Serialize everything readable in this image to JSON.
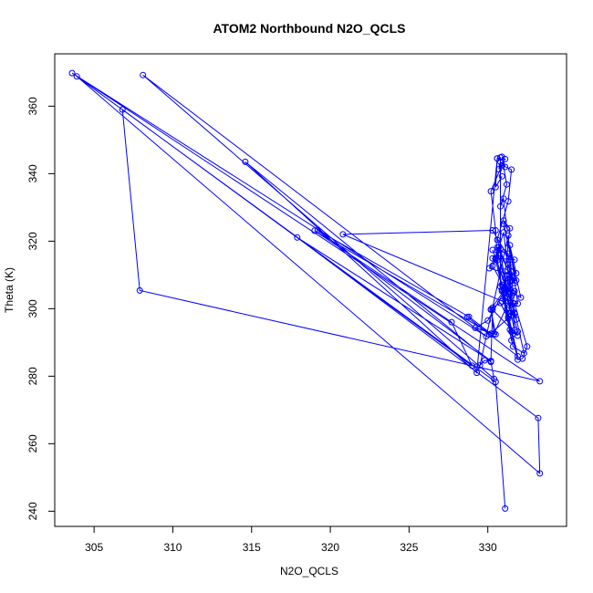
{
  "chart_data": {
    "type": "line",
    "title": "ATOM2 Northbound N2O_QCLS",
    "xlabel": "N2O_QCLS",
    "ylabel": "Theta (K)",
    "xlim": [
      302.5,
      335.0
    ],
    "ylim": [
      235.5,
      375.5
    ],
    "xticks": [
      305,
      310,
      315,
      320,
      325,
      330
    ],
    "yticks": [
      240,
      260,
      280,
      300,
      320,
      340,
      360
    ],
    "grid": false,
    "series": [
      {
        "color": "#0000ff",
        "marker": "open-circle",
        "x": [
          330.9,
          330.5,
          330.6,
          331.1,
          330.7,
          330.8,
          331.1,
          330.9,
          331.2,
          330.8,
          331.0,
          331.2,
          331.0,
          331.4,
          331.1,
          331.6,
          331.3,
          331.8,
          331.4,
          331.9,
          331.7,
          332.5,
          332.2,
          331.9,
          331.3,
          330.8,
          330.3,
          330.2,
          331.0,
          331.2,
          332.3,
          331.6,
          331.4,
          330.6,
          330.5,
          330.2,
          330.9,
          331.5,
          331.3,
          330.6,
          330.8,
          330.1,
          331.4,
          330.7,
          331.3,
          330.3,
          331.3,
          331.4,
          330.0,
          329.2,
          330.5,
          330.2,
          330.4,
          331.6,
          330.9,
          331.5,
          331.0,
          330.5,
          331.7,
          330.6,
          331.7,
          330.9,
          331.6,
          331.3,
          329.5,
          329.8,
          330.2,
          330.3,
          331.9,
          331.5,
          331.3,
          331.1,
          330.9,
          331.4,
          331.5,
          331.2,
          331.7,
          330.1,
          328.7,
          331.9,
          330.5,
          330.3,
          330.7,
          330.3,
          331.6,
          331.7,
          331.1,
          330.9,
          331.5,
          331.9,
          331.1,
          331.7,
          331.3,
          330.6,
          331.5,
          320.8,
          330.3,
          331.4,
          331.5,
          331.8,
          331.0,
          332.1,
          331.2,
          331.7,
          331.8,
          330.8,
          330.8,
          330.6,
          329.3,
          314.6,
          330.2,
          330.4,
          308.1,
          329.9,
          303.6,
          333.3,
          329.3,
          307.9,
          306.8,
          329.0,
          327.7,
          319.0,
          330.2,
          328.8,
          319.2,
          330.2,
          317.9,
          333.2,
          333.3,
          303.9,
          330.5,
          331.1
        ],
        "y": [
          339.2,
          336.0,
          344.5,
          344.3,
          341.3,
          343.5,
          342.0,
          345.0,
          336.8,
          330.3,
          332.6,
          323.8,
          326.1,
          323.8,
          311.0,
          309.2,
          313.0,
          310.5,
          318.8,
          301.5,
          301.5,
          288.8,
          285.2,
          284.9,
          297.1,
          301.7,
          300.3,
          299.8,
          305.2,
          309.8,
          286.8,
          288.8,
          293.8,
          314.3,
          323.2,
          334.8,
          342.5,
          341.2,
          331.8,
          320.4,
          317.8,
          312.0,
          310.2,
          318.2,
          304.4,
          317.4,
          305.0,
          308.0,
          296.5,
          294.3,
          292.4,
          299.7,
          292.6,
          304.6,
          305.6,
          303.8,
          322.6,
          315.0,
          314.5,
          318.1,
          307.6,
          307.1,
          304.6,
          321.7,
          283.2,
          284.7,
          284.5,
          299.7,
          292.0,
          293.2,
          297.7,
          303.3,
          302.2,
          305.9,
          298.0,
          299.7,
          298.8,
          292.3,
          297.5,
          285.9,
          314.5,
          314.9,
          316.4,
          312.7,
          301.6,
          305.2,
          309.0,
          305.2,
          290.6,
          293.2,
          306.1,
          293.7,
          316.3,
          317.3,
          301.1,
          322.0,
          323.2,
          314.5,
          308.4,
          308.4,
          325.1,
          303.3,
          305.6,
          298.5,
          296.8,
          306.5,
          344.8,
          344.5,
          281.0,
          343.5,
          284.2,
          279.2,
          369.2,
          291.8,
          369.8,
          278.5,
          282.8,
          305.4,
          359.0,
          283.1,
          296.0,
          323.1,
          292.6,
          297.6,
          323.2,
          284.5,
          321.1,
          267.6,
          251.2,
          368.8,
          278.3,
          240.8
        ]
      }
    ]
  }
}
